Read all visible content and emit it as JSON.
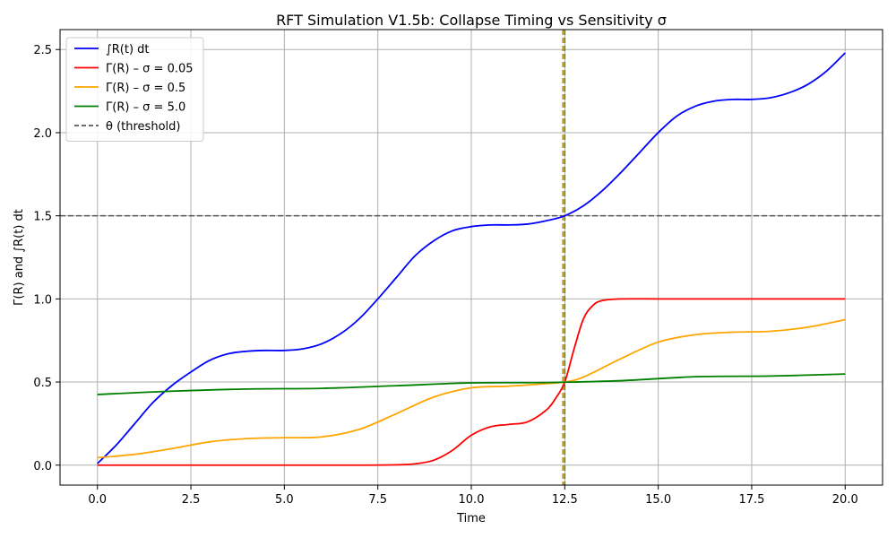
{
  "chart_data": {
    "type": "line",
    "title": "RFT Simulation V1.5b: Collapse Timing vs Sensitivity σ",
    "xlabel": "Time",
    "ylabel": "Γ(R) and ∫R(t) dt",
    "xlim": [
      -1.0,
      21.0
    ],
    "ylim": [
      -0.12,
      2.62
    ],
    "xticks": [
      0.0,
      2.5,
      5.0,
      7.5,
      10.0,
      12.5,
      15.0,
      17.5,
      20.0
    ],
    "xtick_labels": [
      "0.0",
      "2.5",
      "5.0",
      "7.5",
      "10.0",
      "12.5",
      "15.0",
      "17.5",
      "20.0"
    ],
    "yticks": [
      0.0,
      0.5,
      1.0,
      1.5,
      2.0,
      2.5
    ],
    "ytick_labels": [
      "0.0",
      "0.5",
      "1.0",
      "1.5",
      "2.0",
      "2.5"
    ],
    "grid": true,
    "legend_position": "upper-left",
    "series": [
      {
        "name": "∫R(t) dt",
        "color": "#0000ff",
        "style": "solid",
        "x": [
          0,
          0.5,
          1,
          1.5,
          2,
          2.5,
          3,
          3.5,
          4,
          4.5,
          5,
          5.5,
          6,
          6.5,
          7,
          7.5,
          8,
          8.5,
          9,
          9.5,
          10,
          10.5,
          11,
          11.5,
          12,
          12.5,
          13,
          13.5,
          14,
          14.5,
          15,
          15.5,
          16,
          16.5,
          17,
          17.5,
          18,
          18.5,
          19,
          19.5,
          20
        ],
        "y": [
          0.01,
          0.12,
          0.25,
          0.38,
          0.48,
          0.56,
          0.63,
          0.67,
          0.685,
          0.69,
          0.69,
          0.7,
          0.73,
          0.79,
          0.88,
          1.0,
          1.13,
          1.26,
          1.35,
          1.41,
          1.435,
          1.445,
          1.445,
          1.45,
          1.47,
          1.5,
          1.56,
          1.65,
          1.76,
          1.88,
          2.0,
          2.1,
          2.16,
          2.19,
          2.2,
          2.2,
          2.21,
          2.24,
          2.29,
          2.37,
          2.48
        ]
      },
      {
        "name": "Γ(R) – σ = 0.05",
        "color": "#ff0000",
        "style": "solid",
        "x": [
          0,
          1,
          2,
          3,
          4,
          5,
          6,
          7,
          8,
          8.5,
          9,
          9.5,
          10,
          10.5,
          11,
          11.5,
          12,
          12.25,
          12.5,
          12.75,
          13,
          13.25,
          13.5,
          14,
          15,
          16,
          17,
          18,
          19,
          20
        ],
        "y": [
          0,
          0,
          0,
          0,
          0,
          0,
          0,
          0,
          0.002,
          0.008,
          0.03,
          0.09,
          0.18,
          0.23,
          0.245,
          0.26,
          0.33,
          0.4,
          0.5,
          0.7,
          0.88,
          0.96,
          0.99,
          1.0,
          1.0,
          1.0,
          1.0,
          1.0,
          1.0,
          1.0
        ]
      },
      {
        "name": "Γ(R) – σ = 0.5",
        "color": "#ffa500",
        "style": "solid",
        "x": [
          0,
          1,
          2,
          3,
          4,
          5,
          6,
          7,
          8,
          9,
          10,
          11,
          12,
          12.5,
          13,
          14,
          15,
          16,
          17,
          18,
          19,
          20
        ],
        "y": [
          0.045,
          0.065,
          0.1,
          0.14,
          0.16,
          0.165,
          0.17,
          0.215,
          0.31,
          0.41,
          0.465,
          0.475,
          0.49,
          0.5,
          0.53,
          0.64,
          0.74,
          0.785,
          0.8,
          0.805,
          0.83,
          0.875
        ]
      },
      {
        "name": "Γ(R) – σ = 5.0",
        "color": "#008000",
        "style": "solid",
        "x": [
          0,
          2,
          4,
          6,
          8,
          10,
          12,
          14,
          16,
          18,
          20
        ],
        "y": [
          0.425,
          0.445,
          0.458,
          0.462,
          0.478,
          0.495,
          0.497,
          0.508,
          0.532,
          0.536,
          0.548
        ]
      }
    ],
    "reference_lines": [
      {
        "name": "θ (threshold)",
        "orientation": "horizontal",
        "value": 1.5,
        "color": "#555555",
        "style": "dashed"
      },
      {
        "orientation": "vertical",
        "value": 12.45,
        "color": "#b8860b",
        "style": "dashed"
      },
      {
        "orientation": "vertical",
        "value": 12.5,
        "color": "#556b2f",
        "style": "dashed"
      }
    ]
  }
}
